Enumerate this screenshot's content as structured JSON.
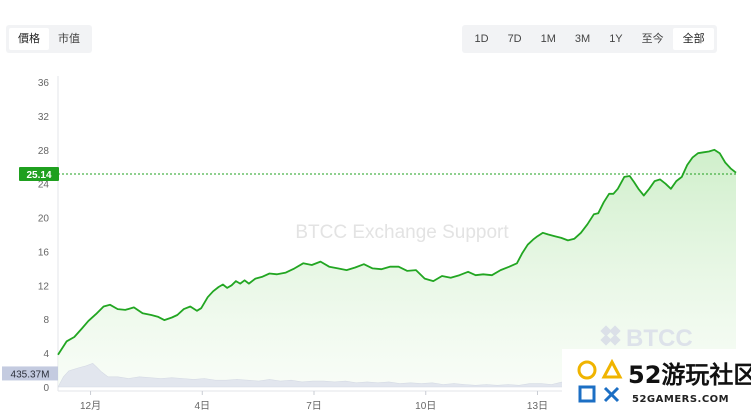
{
  "tabs": {
    "left": [
      {
        "label": "價格",
        "active": true
      },
      {
        "label": "市值",
        "active": false
      }
    ],
    "range": [
      {
        "label": "1D",
        "active": false
      },
      {
        "label": "7D",
        "active": false
      },
      {
        "label": "1M",
        "active": false
      },
      {
        "label": "3M",
        "active": false
      },
      {
        "label": "1Y",
        "active": false
      },
      {
        "label": "至今",
        "active": false
      },
      {
        "label": "全部",
        "active": true
      }
    ]
  },
  "watermark": {
    "text": "BTCC Exchange Support",
    "brand": "BTCC"
  },
  "badge": {
    "main": "52游玩社区",
    "site": "52GAMERS.COM"
  },
  "colors": {
    "line": "#22a622",
    "fill": "#d8f2d4",
    "current_label": "#1fa01f",
    "volume_label": "#c4cbe0",
    "volume_area": "#e1e5ee"
  },
  "chart_data": {
    "type": "area",
    "yticks": [
      "0",
      "4",
      "8",
      "12",
      "16",
      "20",
      "24",
      "28",
      "32",
      "36"
    ],
    "ylim": [
      0,
      36
    ],
    "xticks": [
      {
        "label": "12月",
        "x": 30
      },
      {
        "label": "4日",
        "x": 133
      },
      {
        "label": "7日",
        "x": 236
      },
      {
        "label": "10日",
        "x": 339
      },
      {
        "label": "13日",
        "x": 442
      }
    ],
    "xlim": [
      0,
      625
    ],
    "current_price": {
      "label": "25.14",
      "value": 25.14
    },
    "volume_label": "435.37M",
    "volume_label_value": 1.6,
    "price": [
      [
        0,
        3.8
      ],
      [
        8,
        5.4
      ],
      [
        15,
        5.9
      ],
      [
        22,
        6.9
      ],
      [
        28,
        7.8
      ],
      [
        35,
        8.6
      ],
      [
        42,
        9.5
      ],
      [
        48,
        9.7
      ],
      [
        55,
        9.2
      ],
      [
        62,
        9.1
      ],
      [
        70,
        9.4
      ],
      [
        78,
        8.7
      ],
      [
        86,
        8.5
      ],
      [
        92,
        8.3
      ],
      [
        98,
        7.9
      ],
      [
        105,
        8.2
      ],
      [
        110,
        8.5
      ],
      [
        116,
        9.2
      ],
      [
        122,
        9.5
      ],
      [
        128,
        9.0
      ],
      [
        132,
        9.3
      ],
      [
        138,
        10.6
      ],
      [
        143,
        11.3
      ],
      [
        148,
        11.8
      ],
      [
        152,
        12.1
      ],
      [
        156,
        11.7
      ],
      [
        160,
        12.0
      ],
      [
        164,
        12.5
      ],
      [
        168,
        12.2
      ],
      [
        172,
        12.6
      ],
      [
        176,
        12.2
      ],
      [
        182,
        12.8
      ],
      [
        188,
        13.0
      ],
      [
        195,
        13.4
      ],
      [
        202,
        13.3
      ],
      [
        210,
        13.5
      ],
      [
        218,
        14.0
      ],
      [
        226,
        14.6
      ],
      [
        234,
        14.4
      ],
      [
        242,
        14.8
      ],
      [
        250,
        14.2
      ],
      [
        258,
        14.0
      ],
      [
        266,
        13.8
      ],
      [
        274,
        14.1
      ],
      [
        282,
        14.5
      ],
      [
        290,
        14.0
      ],
      [
        298,
        13.9
      ],
      [
        306,
        14.2
      ],
      [
        314,
        14.2
      ],
      [
        322,
        13.7
      ],
      [
        330,
        13.8
      ],
      [
        338,
        12.8
      ],
      [
        346,
        12.5
      ],
      [
        354,
        13.1
      ],
      [
        362,
        12.9
      ],
      [
        370,
        13.2
      ],
      [
        378,
        13.6
      ],
      [
        385,
        13.2
      ],
      [
        392,
        13.3
      ],
      [
        400,
        13.2
      ],
      [
        408,
        13.8
      ],
      [
        416,
        14.2
      ],
      [
        423,
        14.6
      ],
      [
        428,
        15.8
      ],
      [
        433,
        16.8
      ],
      [
        438,
        17.4
      ],
      [
        442,
        17.8
      ],
      [
        447,
        18.2
      ],
      [
        452,
        18.0
      ],
      [
        458,
        17.8
      ],
      [
        464,
        17.6
      ],
      [
        470,
        17.3
      ],
      [
        476,
        17.5
      ],
      [
        482,
        18.2
      ],
      [
        488,
        19.2
      ],
      [
        494,
        20.4
      ],
      [
        498,
        20.5
      ],
      [
        503,
        21.8
      ],
      [
        508,
        22.8
      ],
      [
        512,
        22.8
      ],
      [
        516,
        23.4
      ],
      [
        522,
        24.8
      ],
      [
        527,
        24.9
      ],
      [
        531,
        24.2
      ],
      [
        535,
        23.4
      ],
      [
        540,
        22.6
      ],
      [
        545,
        23.4
      ],
      [
        550,
        24.3
      ],
      [
        555,
        24.5
      ],
      [
        560,
        24.0
      ],
      [
        565,
        23.4
      ],
      [
        570,
        24.3
      ],
      [
        575,
        24.8
      ],
      [
        580,
        26.2
      ],
      [
        585,
        27.1
      ],
      [
        590,
        27.6
      ],
      [
        595,
        27.7
      ],
      [
        600,
        27.8
      ],
      [
        605,
        28.0
      ],
      [
        610,
        27.6
      ],
      [
        615,
        26.5
      ],
      [
        620,
        25.8
      ],
      [
        625,
        25.3
      ]
    ],
    "volume": [
      [
        0,
        0.0
      ],
      [
        5,
        1.2
      ],
      [
        10,
        1.9
      ],
      [
        15,
        2.1
      ],
      [
        20,
        2.3
      ],
      [
        26,
        2.5
      ],
      [
        32,
        2.8
      ],
      [
        36,
        2.3
      ],
      [
        40,
        1.8
      ],
      [
        46,
        1.2
      ],
      [
        55,
        1.2
      ],
      [
        65,
        1.0
      ],
      [
        75,
        1.2
      ],
      [
        85,
        1.1
      ],
      [
        95,
        1.0
      ],
      [
        105,
        1.1
      ],
      [
        115,
        1.0
      ],
      [
        125,
        0.9
      ],
      [
        135,
        1.0
      ],
      [
        145,
        0.8
      ],
      [
        155,
        0.8
      ],
      [
        165,
        0.9
      ],
      [
        175,
        0.8
      ],
      [
        185,
        0.7
      ],
      [
        195,
        0.9
      ],
      [
        205,
        0.7
      ],
      [
        215,
        0.8
      ],
      [
        225,
        0.6
      ],
      [
        235,
        0.7
      ],
      [
        245,
        0.7
      ],
      [
        255,
        0.6
      ],
      [
        265,
        0.7
      ],
      [
        275,
        0.5
      ],
      [
        285,
        0.6
      ],
      [
        295,
        0.5
      ],
      [
        305,
        0.6
      ],
      [
        315,
        0.4
      ],
      [
        325,
        0.5
      ],
      [
        335,
        0.4
      ],
      [
        345,
        0.5
      ],
      [
        355,
        0.3
      ],
      [
        365,
        0.4
      ],
      [
        375,
        0.3
      ],
      [
        385,
        0.2
      ],
      [
        395,
        0.3
      ],
      [
        405,
        0.2
      ],
      [
        415,
        0.3
      ],
      [
        425,
        0.2
      ],
      [
        435,
        0.4
      ],
      [
        445,
        0.4
      ],
      [
        455,
        0.3
      ],
      [
        465,
        0.6
      ],
      [
        475,
        0.7
      ],
      [
        485,
        0.5
      ],
      [
        495,
        0.4
      ],
      [
        505,
        0.5
      ],
      [
        515,
        0.6
      ],
      [
        525,
        0.6
      ],
      [
        535,
        0.8
      ],
      [
        545,
        0.7
      ],
      [
        555,
        0.9
      ],
      [
        565,
        1.0
      ],
      [
        575,
        1.0
      ],
      [
        585,
        1.2
      ],
      [
        595,
        1.3
      ],
      [
        605,
        1.5
      ],
      [
        615,
        1.4
      ],
      [
        625,
        1.3
      ]
    ]
  }
}
